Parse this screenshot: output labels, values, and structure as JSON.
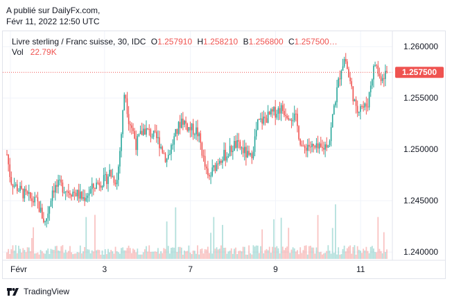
{
  "header": {
    "published_on": "A publié sur DailyFx.com,",
    "datetime": "Févr 11, 2022 12:50 UTC"
  },
  "legend": {
    "symbol": "Livre sterling / Franc suisse, 30, IDC",
    "open_label": "O",
    "open": "1.257910",
    "high_label": "H",
    "high": "1.258210",
    "low_label": "B",
    "low": "1.256800",
    "close_label": "C",
    "close": "1.257500…",
    "vol_label": "Vol",
    "vol": "22.79K"
  },
  "last_price_label": "1.257500",
  "brand": {
    "name": "TradingView"
  },
  "colors": {
    "up": "#26a69a",
    "down": "#ef5350",
    "grid": "#f0f3fa",
    "accent": "#ef5350"
  },
  "chart_data": {
    "type": "candlestick",
    "instrument": "Livre sterling / Franc suisse",
    "timeframe": "30",
    "source": "IDC",
    "y_ticks": [
      "1.260000",
      "1.255000",
      "1.250000",
      "1.245000",
      "1.240000"
    ],
    "ylim": [
      1.2392,
      1.2615
    ],
    "x_ticks": [
      {
        "label": "Févr",
        "t": 0
      },
      {
        "label": "3",
        "t": 0.257
      },
      {
        "label": "7",
        "t": 0.483
      },
      {
        "label": "9",
        "t": 0.707
      },
      {
        "label": "11",
        "t": 0.931
      }
    ],
    "last_price": 1.2575,
    "close_path": [
      [
        0.0,
        1.2495
      ],
      [
        0.01,
        1.247
      ],
      [
        0.02,
        1.2465
      ],
      [
        0.04,
        1.2458
      ],
      [
        0.06,
        1.2452
      ],
      [
        0.08,
        1.2448
      ],
      [
        0.09,
        1.2438
      ],
      [
        0.1,
        1.2428
      ],
      [
        0.11,
        1.2442
      ],
      [
        0.12,
        1.2462
      ],
      [
        0.14,
        1.2465
      ],
      [
        0.16,
        1.246
      ],
      [
        0.18,
        1.2458
      ],
      [
        0.2,
        1.2452
      ],
      [
        0.22,
        1.246
      ],
      [
        0.24,
        1.2468
      ],
      [
        0.26,
        1.247
      ],
      [
        0.27,
        1.2478
      ],
      [
        0.28,
        1.2472
      ],
      [
        0.29,
        1.247
      ],
      [
        0.3,
        1.251
      ],
      [
        0.31,
        1.256
      ],
      [
        0.32,
        1.253
      ],
      [
        0.33,
        1.252
      ],
      [
        0.34,
        1.2505
      ],
      [
        0.36,
        1.252
      ],
      [
        0.38,
        1.2515
      ],
      [
        0.4,
        1.2508
      ],
      [
        0.42,
        1.249
      ],
      [
        0.44,
        1.251
      ],
      [
        0.46,
        1.253
      ],
      [
        0.48,
        1.252
      ],
      [
        0.5,
        1.2518
      ],
      [
        0.51,
        1.2505
      ],
      [
        0.52,
        1.2485
      ],
      [
        0.53,
        1.247
      ],
      [
        0.54,
        1.2478
      ],
      [
        0.56,
        1.2492
      ],
      [
        0.58,
        1.2495
      ],
      [
        0.6,
        1.2505
      ],
      [
        0.62,
        1.25
      ],
      [
        0.64,
        1.249
      ],
      [
        0.65,
        1.2505
      ],
      [
        0.66,
        1.2525
      ],
      [
        0.68,
        1.253
      ],
      [
        0.7,
        1.2535
      ],
      [
        0.72,
        1.254
      ],
      [
        0.74,
        1.2535
      ],
      [
        0.76,
        1.253
      ],
      [
        0.77,
        1.2512
      ],
      [
        0.78,
        1.2498
      ],
      [
        0.79,
        1.2505
      ],
      [
        0.81,
        1.25
      ],
      [
        0.83,
        1.25
      ],
      [
        0.85,
        1.251
      ],
      [
        0.86,
        1.254
      ],
      [
        0.87,
        1.256
      ],
      [
        0.88,
        1.258
      ],
      [
        0.89,
        1.259
      ],
      [
        0.9,
        1.257
      ],
      [
        0.91,
        1.2555
      ],
      [
        0.92,
        1.2535
      ],
      [
        0.93,
        1.2545
      ],
      [
        0.94,
        1.254
      ],
      [
        0.95,
        1.2545
      ],
      [
        0.96,
        1.257
      ],
      [
        0.97,
        1.2585
      ],
      [
        0.98,
        1.257
      ],
      [
        1.0,
        1.2575
      ]
    ]
  }
}
